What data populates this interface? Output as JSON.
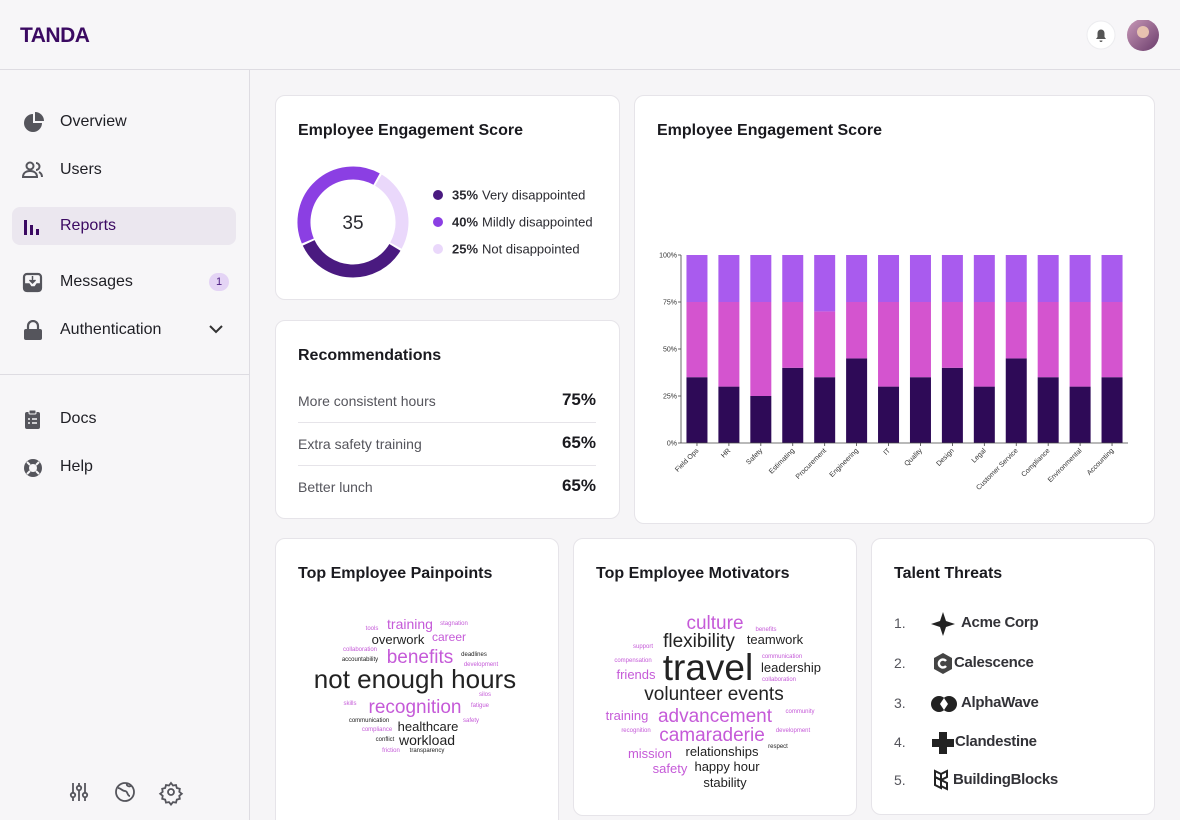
{
  "header": {
    "brand": "TANDA"
  },
  "sidebar": {
    "nav": [
      "Overview",
      "Users",
      "Reports",
      "Messages",
      "Authentication"
    ],
    "messages_badge": "1",
    "secondary": [
      "Docs",
      "Help"
    ]
  },
  "chart_data": [
    {
      "type": "donut",
      "title": "Employee Engagement Score",
      "score": 35,
      "categories": [
        "Very disappointed",
        "Mildly disappointed",
        "Not disappointed"
      ],
      "values": [
        35,
        40,
        25
      ],
      "value_labels": [
        "35%",
        "40%",
        "25%"
      ],
      "colors": [
        "#4a1a80",
        "#8b3fe3",
        "#ead8fb"
      ]
    },
    {
      "type": "stacked_bar",
      "title": "Employee Engagement Score",
      "categories": [
        "Field Ops",
        "HR",
        "Safety",
        "Estimating",
        "Procurement",
        "Engineering",
        "IT",
        "Quality",
        "Design",
        "Legal",
        "Customer Service",
        "Compliance",
        "Environmental",
        "Accounting"
      ],
      "series": [
        {
          "color": "#2e0a57",
          "values": [
            35,
            30,
            25,
            40,
            35,
            45,
            30,
            35,
            40,
            30,
            45,
            35,
            30,
            35
          ]
        },
        {
          "color": "#d454cf",
          "values": [
            40,
            45,
            50,
            35,
            35,
            30,
            45,
            40,
            35,
            45,
            30,
            40,
            45,
            40
          ]
        },
        {
          "color": "#a95bee",
          "values": [
            25,
            25,
            25,
            25,
            30,
            25,
            25,
            25,
            25,
            25,
            25,
            25,
            25,
            25
          ]
        }
      ],
      "ylim": [
        0,
        100
      ],
      "yticks": [
        {
          "value": 0,
          "label": "0%"
        },
        {
          "value": 25,
          "label": "25%"
        },
        {
          "value": 50,
          "label": "50%"
        },
        {
          "value": 75,
          "label": "75%"
        },
        {
          "value": 100,
          "label": "100%"
        }
      ]
    }
  ],
  "recommendations": {
    "title": "Recommendations",
    "rows": [
      [
        "More consistent hours",
        "75%"
      ],
      [
        "Extra safety training",
        "65%"
      ],
      [
        "Better lunch",
        "65%"
      ]
    ]
  },
  "painpoints": {
    "title": "Top Employee Painpoints",
    "words": [
      "tools",
      "training",
      "stagnation",
      "overwork",
      "career",
      "collaboration",
      "benefits",
      "deadlines",
      "accountability",
      "development",
      "not enough hours",
      "silos",
      "skills",
      "recognition",
      "fatigue",
      "communication",
      "safety",
      "healthcare",
      "compliance",
      "conflict",
      "workload",
      "friction",
      "transparency"
    ]
  },
  "motivators": {
    "title": "Top Employee Motivators",
    "words": [
      "culture",
      "benefits",
      "support",
      "flexibility",
      "teamwork",
      "communication",
      "compensation",
      "travel",
      "leadership",
      "friends",
      "collaboration",
      "volunteer events",
      "community",
      "training",
      "advancement",
      "recognition",
      "development",
      "camaraderie",
      "mission",
      "relationships",
      "respect",
      "safety",
      "happy hour",
      "stability"
    ]
  },
  "talent_threats": {
    "title": "Talent Threats",
    "items": [
      [
        "1.",
        "Acme Corp"
      ],
      [
        "2.",
        "Calescence"
      ],
      [
        "3.",
        "AlphaWave"
      ],
      [
        "4.",
        "Clandestine"
      ],
      [
        "5.",
        "BuildingBlocks"
      ]
    ]
  }
}
